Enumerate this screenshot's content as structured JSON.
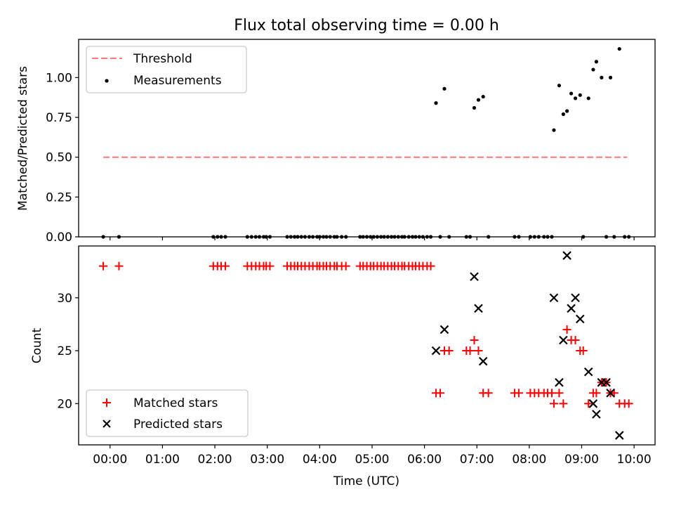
{
  "chart_data": [
    {
      "type": "scatter",
      "title": "Flux total observing time = 0.00 h",
      "xlabel": "",
      "ylabel": "Matched/Predicted stars",
      "xlim": [
        -0.6,
        10.4
      ],
      "ylim": [
        0.0,
        1.24
      ],
      "yticks": [
        0.0,
        0.25,
        0.5,
        0.75,
        1.0
      ],
      "ytick_labels": [
        "0.00",
        "0.25",
        "0.50",
        "0.75",
        "1.00"
      ],
      "legend_position": "top-left",
      "threshold": {
        "name": "Threshold",
        "color": "#ff7777",
        "x": [
          -0.13,
          9.87
        ],
        "y": [
          0.5,
          0.5
        ]
      },
      "measurements": {
        "name": "Measurements",
        "color": "#000000",
        "x": [
          -0.13,
          0.17,
          1.97,
          2.05,
          2.12,
          2.2,
          2.62,
          2.7,
          2.78,
          2.85,
          2.93,
          2.98,
          3.05,
          3.38,
          3.45,
          3.52,
          3.58,
          3.65,
          3.72,
          3.8,
          3.87,
          3.95,
          4.0,
          4.07,
          4.13,
          4.2,
          4.28,
          4.33,
          4.42,
          4.5,
          4.77,
          4.83,
          4.9,
          4.97,
          5.03,
          5.1,
          5.17,
          5.23,
          5.3,
          5.37,
          5.43,
          5.5,
          5.57,
          5.62,
          5.7,
          5.77,
          5.83,
          5.9,
          5.97,
          6.05,
          6.12,
          6.22,
          6.3,
          6.38,
          6.47,
          6.8,
          6.87,
          6.95,
          7.03,
          7.12,
          7.22,
          7.72,
          7.8,
          8.02,
          8.1,
          8.18,
          8.28,
          8.35,
          8.43,
          8.47,
          8.57,
          8.65,
          8.72,
          8.8,
          8.88,
          8.97,
          9.03,
          9.13,
          9.22,
          9.28,
          9.38,
          9.47,
          9.55,
          9.62,
          9.72,
          9.82,
          9.9
        ],
        "y": [
          0,
          0,
          0,
          0,
          0,
          0,
          0,
          0,
          0,
          0,
          0,
          0,
          0,
          0,
          0,
          0,
          0,
          0,
          0,
          0,
          0,
          0,
          0,
          0,
          0,
          0,
          0,
          0,
          0,
          0,
          0,
          0,
          0,
          0,
          0,
          0,
          0,
          0,
          0,
          0,
          0,
          0,
          0,
          0,
          0,
          0,
          0,
          0,
          0,
          0,
          0,
          0.84,
          0,
          0.93,
          0,
          0,
          0,
          0.81,
          0.86,
          0.88,
          0,
          0,
          0,
          0,
          0,
          0,
          0,
          0,
          0,
          0.67,
          0.95,
          0.77,
          0.79,
          0.9,
          0.87,
          0.89,
          0,
          0.87,
          1.05,
          1.1,
          1.0,
          0,
          1.0,
          0,
          1.18,
          0,
          0
        ]
      }
    },
    {
      "type": "scatter",
      "title": "",
      "xlabel": "Time (UTC)",
      "ylabel": "Count",
      "xlim": [
        -0.6,
        10.4
      ],
      "ylim": [
        16.1,
        34.9
      ],
      "yticks": [
        20,
        25,
        30
      ],
      "ytick_labels": [
        "20",
        "25",
        "30"
      ],
      "xticks": [
        0,
        1,
        2,
        3,
        4,
        5,
        6,
        7,
        8,
        9,
        10
      ],
      "xtick_labels": [
        "00:00",
        "01:00",
        "02:00",
        "03:00",
        "04:00",
        "05:00",
        "06:00",
        "07:00",
        "08:00",
        "09:00",
        "10:00"
      ],
      "legend_position": "bottom-left",
      "series": [
        {
          "name": "Matched stars",
          "marker": "plus",
          "color": "#ff0000",
          "x": [
            -0.13,
            0.17,
            1.97,
            2.05,
            2.12,
            2.2,
            2.62,
            2.7,
            2.78,
            2.85,
            2.93,
            2.98,
            3.05,
            3.38,
            3.45,
            3.52,
            3.58,
            3.65,
            3.72,
            3.8,
            3.87,
            3.95,
            4.0,
            4.07,
            4.13,
            4.2,
            4.28,
            4.33,
            4.42,
            4.5,
            4.77,
            4.83,
            4.9,
            4.97,
            5.03,
            5.1,
            5.17,
            5.23,
            5.3,
            5.37,
            5.43,
            5.5,
            5.57,
            5.62,
            5.7,
            5.77,
            5.83,
            5.9,
            5.97,
            6.05,
            6.12,
            6.22,
            6.3,
            6.38,
            6.47,
            6.8,
            6.87,
            6.95,
            7.03,
            7.12,
            7.22,
            7.72,
            7.8,
            8.02,
            8.1,
            8.18,
            8.28,
            8.35,
            8.43,
            8.47,
            8.57,
            8.65,
            8.72,
            8.8,
            8.88,
            8.97,
            9.03,
            9.13,
            9.22,
            9.28,
            9.38,
            9.47,
            9.55,
            9.62,
            9.72,
            9.82,
            9.9
          ],
          "y": [
            33,
            33,
            33,
            33,
            33,
            33,
            33,
            33,
            33,
            33,
            33,
            33,
            33,
            33,
            33,
            33,
            33,
            33,
            33,
            33,
            33,
            33,
            33,
            33,
            33,
            33,
            33,
            33,
            33,
            33,
            33,
            33,
            33,
            33,
            33,
            33,
            33,
            33,
            33,
            33,
            33,
            33,
            33,
            33,
            33,
            33,
            33,
            33,
            33,
            33,
            33,
            21,
            21,
            25,
            25,
            25,
            25,
            26,
            25,
            21,
            21,
            21,
            21,
            21,
            21,
            21,
            21,
            21,
            21,
            20,
            21,
            20,
            27,
            26,
            26,
            25,
            25,
            20,
            21,
            21,
            22,
            22,
            21,
            21,
            20,
            20,
            20
          ]
        },
        {
          "name": "Predicted stars",
          "marker": "x",
          "color": "#000000",
          "x": [
            6.22,
            6.38,
            6.95,
            7.03,
            7.12,
            8.47,
            8.57,
            8.65,
            8.72,
            8.8,
            8.88,
            8.97,
            9.13,
            9.22,
            9.28,
            9.38,
            9.47,
            9.55,
            9.72
          ],
          "y": [
            25,
            27,
            32,
            29,
            24,
            30,
            22,
            26,
            34,
            29,
            30,
            28,
            23,
            20,
            19,
            22,
            22,
            21,
            17
          ]
        }
      ]
    }
  ]
}
